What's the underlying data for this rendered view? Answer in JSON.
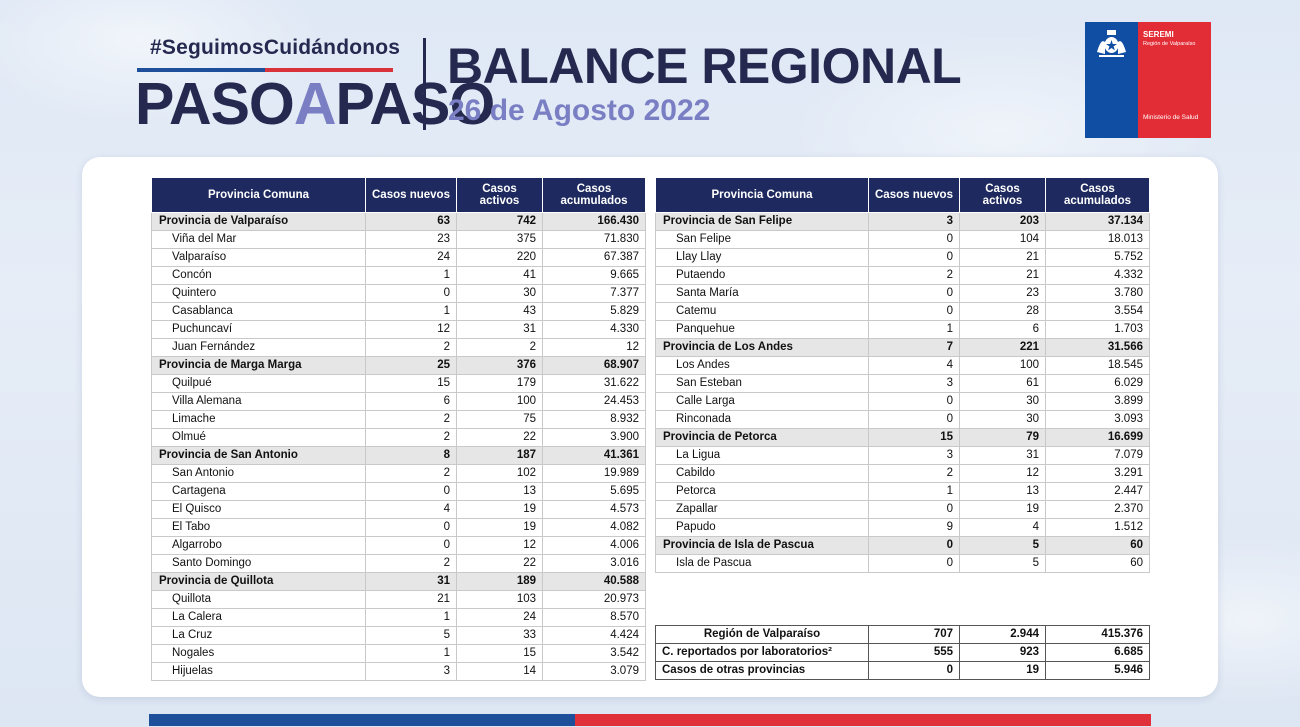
{
  "header": {
    "hashtag": "#SeguimosCuidándonos",
    "logo_left": "PASO",
    "logo_mid": "A",
    "logo_right": "PASO",
    "title": "BALANCE REGIONAL",
    "date": "26 de Agosto 2022"
  },
  "seremi": {
    "line1": "SEREMI",
    "line2": "Región de Valparaíso",
    "line3": "Ministerio de Salud"
  },
  "columns": [
    "Provincia Comuna",
    "Casos nuevos",
    "Casos activos",
    "Casos acumulados"
  ],
  "left_table": [
    {
      "type": "prov",
      "name": "Provincia de Valparaíso",
      "nuevos": "63",
      "activos": "742",
      "acumulados": "166.430"
    },
    {
      "type": "comuna",
      "name": "Viña del Mar",
      "nuevos": "23",
      "activos": "375",
      "acumulados": "71.830"
    },
    {
      "type": "comuna",
      "name": "Valparaíso",
      "nuevos": "24",
      "activos": "220",
      "acumulados": "67.387"
    },
    {
      "type": "comuna",
      "name": "Concón",
      "nuevos": "1",
      "activos": "41",
      "acumulados": "9.665"
    },
    {
      "type": "comuna",
      "name": "Quintero",
      "nuevos": "0",
      "activos": "30",
      "acumulados": "7.377"
    },
    {
      "type": "comuna",
      "name": "Casablanca",
      "nuevos": "1",
      "activos": "43",
      "acumulados": "5.829"
    },
    {
      "type": "comuna",
      "name": "Puchuncaví",
      "nuevos": "12",
      "activos": "31",
      "acumulados": "4.330"
    },
    {
      "type": "comuna",
      "name": "Juan Fernández",
      "nuevos": "2",
      "activos": "2",
      "acumulados": "12"
    },
    {
      "type": "prov",
      "name": "Provincia de Marga Marga",
      "nuevos": "25",
      "activos": "376",
      "acumulados": "68.907"
    },
    {
      "type": "comuna",
      "name": "Quilpué",
      "nuevos": "15",
      "activos": "179",
      "acumulados": "31.622"
    },
    {
      "type": "comuna",
      "name": "Villa Alemana",
      "nuevos": "6",
      "activos": "100",
      "acumulados": "24.453"
    },
    {
      "type": "comuna",
      "name": "Limache",
      "nuevos": "2",
      "activos": "75",
      "acumulados": "8.932"
    },
    {
      "type": "comuna",
      "name": "Olmué",
      "nuevos": "2",
      "activos": "22",
      "acumulados": "3.900"
    },
    {
      "type": "prov",
      "name": "Provincia de San Antonio",
      "nuevos": "8",
      "activos": "187",
      "acumulados": "41.361"
    },
    {
      "type": "comuna",
      "name": "San Antonio",
      "nuevos": "2",
      "activos": "102",
      "acumulados": "19.989"
    },
    {
      "type": "comuna",
      "name": "Cartagena",
      "nuevos": "0",
      "activos": "13",
      "acumulados": "5.695"
    },
    {
      "type": "comuna",
      "name": "El Quisco",
      "nuevos": "4",
      "activos": "19",
      "acumulados": "4.573"
    },
    {
      "type": "comuna",
      "name": "El Tabo",
      "nuevos": "0",
      "activos": "19",
      "acumulados": "4.082"
    },
    {
      "type": "comuna",
      "name": "Algarrobo",
      "nuevos": "0",
      "activos": "12",
      "acumulados": "4.006"
    },
    {
      "type": "comuna",
      "name": "Santo Domingo",
      "nuevos": "2",
      "activos": "22",
      "acumulados": "3.016"
    },
    {
      "type": "prov",
      "name": "Provincia de Quillota",
      "nuevos": "31",
      "activos": "189",
      "acumulados": "40.588"
    },
    {
      "type": "comuna",
      "name": "Quillota",
      "nuevos": "21",
      "activos": "103",
      "acumulados": "20.973"
    },
    {
      "type": "comuna",
      "name": "La Calera",
      "nuevos": "1",
      "activos": "24",
      "acumulados": "8.570"
    },
    {
      "type": "comuna",
      "name": "La Cruz",
      "nuevos": "5",
      "activos": "33",
      "acumulados": "4.424"
    },
    {
      "type": "comuna",
      "name": "Nogales",
      "nuevos": "1",
      "activos": "15",
      "acumulados": "3.542"
    },
    {
      "type": "comuna",
      "name": "Hijuelas",
      "nuevos": "3",
      "activos": "14",
      "acumulados": "3.079"
    }
  ],
  "right_table": [
    {
      "type": "prov",
      "name": "Provincia de San Felipe",
      "nuevos": "3",
      "activos": "203",
      "acumulados": "37.134"
    },
    {
      "type": "comuna",
      "name": "San Felipe",
      "nuevos": "0",
      "activos": "104",
      "acumulados": "18.013"
    },
    {
      "type": "comuna",
      "name": "Llay Llay",
      "nuevos": "0",
      "activos": "21",
      "acumulados": "5.752"
    },
    {
      "type": "comuna",
      "name": "Putaendo",
      "nuevos": "2",
      "activos": "21",
      "acumulados": "4.332"
    },
    {
      "type": "comuna",
      "name": "Santa María",
      "nuevos": "0",
      "activos": "23",
      "acumulados": "3.780"
    },
    {
      "type": "comuna",
      "name": "Catemu",
      "nuevos": "0",
      "activos": "28",
      "acumulados": "3.554"
    },
    {
      "type": "comuna",
      "name": "Panquehue",
      "nuevos": "1",
      "activos": "6",
      "acumulados": "1.703"
    },
    {
      "type": "prov",
      "name": "Provincia de Los Andes",
      "nuevos": "7",
      "activos": "221",
      "acumulados": "31.566"
    },
    {
      "type": "comuna",
      "name": "Los Andes",
      "nuevos": "4",
      "activos": "100",
      "acumulados": "18.545"
    },
    {
      "type": "comuna",
      "name": "San Esteban",
      "nuevos": "3",
      "activos": "61",
      "acumulados": "6.029"
    },
    {
      "type": "comuna",
      "name": "Calle Larga",
      "nuevos": "0",
      "activos": "30",
      "acumulados": "3.899"
    },
    {
      "type": "comuna",
      "name": "Rinconada",
      "nuevos": "0",
      "activos": "30",
      "acumulados": "3.093"
    },
    {
      "type": "prov",
      "name": "Provincia de Petorca",
      "nuevos": "15",
      "activos": "79",
      "acumulados": "16.699"
    },
    {
      "type": "comuna",
      "name": "La Ligua",
      "nuevos": "3",
      "activos": "31",
      "acumulados": "7.079"
    },
    {
      "type": "comuna",
      "name": "Cabildo",
      "nuevos": "2",
      "activos": "12",
      "acumulados": "3.291"
    },
    {
      "type": "comuna",
      "name": "Petorca",
      "nuevos": "1",
      "activos": "13",
      "acumulados": "2.447"
    },
    {
      "type": "comuna",
      "name": "Zapallar",
      "nuevos": "0",
      "activos": "19",
      "acumulados": "2.370"
    },
    {
      "type": "comuna",
      "name": "Papudo",
      "nuevos": "9",
      "activos": "4",
      "acumulados": "1.512"
    },
    {
      "type": "prov",
      "name": "Provincia de Isla de Pascua",
      "nuevos": "0",
      "activos": "5",
      "acumulados": "60"
    },
    {
      "type": "comuna",
      "name": "Isla de Pascua",
      "nuevos": "0",
      "activos": "5",
      "acumulados": "60"
    }
  ],
  "totals": [
    {
      "name": "Región de Valparaíso",
      "nuevos": "707",
      "activos": "2.944",
      "acumulados": "415.376",
      "center": true
    },
    {
      "name": "C. reportados por laboratorios²",
      "nuevos": "555",
      "activos": "923",
      "acumulados": "6.685",
      "center": false
    },
    {
      "name": "Casos de otras provincias",
      "nuevos": "0",
      "activos": "19",
      "acumulados": "5.946",
      "center": false
    }
  ],
  "colors": {
    "navy": "#1e2a5f",
    "lavender": "#7a7fc4",
    "chile_blue": "#0f4ea3",
    "chile_red": "#e32d36"
  }
}
